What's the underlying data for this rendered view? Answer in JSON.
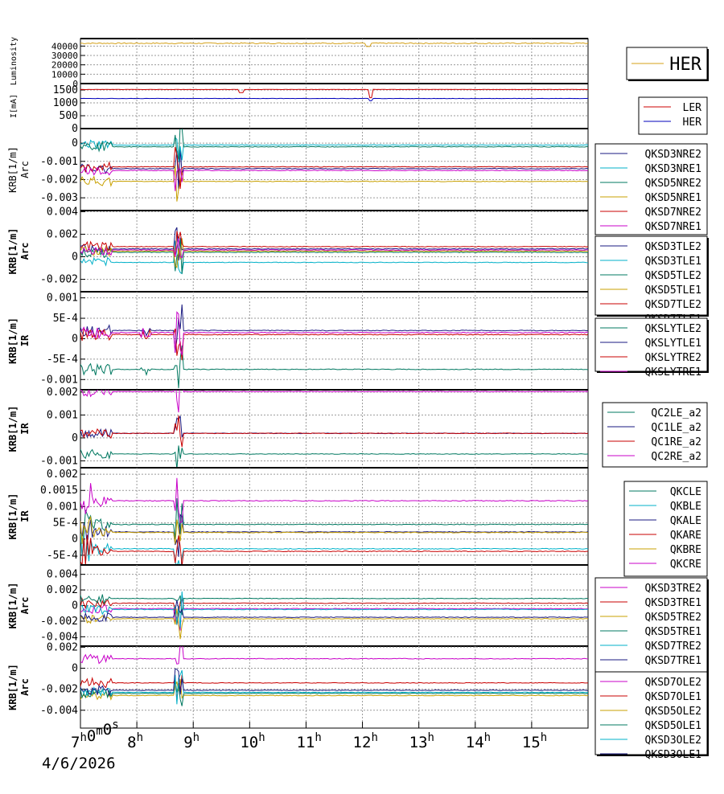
{
  "chart_data": {
    "type": "line",
    "x_axis": {
      "start": "2026-04-06 07:00:00",
      "end": "2026-04-06 16:00:00",
      "tick_labels": [
        "7h0m0s",
        "8h",
        "9h",
        "10h",
        "11h",
        "12h",
        "13h",
        "14h",
        "15h"
      ],
      "date_label": "4/6/2026"
    },
    "panels": [
      {
        "id": "luminosity",
        "ylabel": [
          "Luminosity"
        ],
        "yticks": [
          "40000",
          "30000",
          "20000",
          "10000",
          "0"
        ],
        "ylim": [
          0,
          48000
        ],
        "legend": [
          {
            "name": "HER",
            "color": "#d4a017"
          }
        ],
        "series": [
          {
            "name": "HER",
            "color": "#d4a017",
            "level": 43000,
            "noise": 600,
            "dips": [
              {
                "t": 12.1,
                "v": 39500
              }
            ]
          }
        ]
      },
      {
        "id": "current",
        "ylabel": [
          "I[mA]"
        ],
        "yticks": [
          "1500",
          "1000",
          "500",
          "0"
        ],
        "ylim": [
          0,
          1750
        ],
        "legend": [
          {
            "name": "LER",
            "color": "#cc0000"
          },
          {
            "name": "HER",
            "color": "#0000bb"
          }
        ],
        "series": [
          {
            "name": "LER",
            "color": "#cc0000",
            "level": 1520,
            "noise": 5,
            "dips": [
              {
                "t": 9.85,
                "v": 1400
              },
              {
                "t": 12.15,
                "v": 1200
              }
            ]
          },
          {
            "name": "HER",
            "color": "#0000bb",
            "level": 1170,
            "noise": 5,
            "dips": [
              {
                "t": 12.15,
                "v": 1080
              }
            ]
          }
        ]
      },
      {
        "id": "arc-nre",
        "ylabel": [
          "KRB[1/m]",
          "Arc"
        ],
        "yticks": [
          "0",
          "-0.001",
          "-0.002",
          "-0.003"
        ],
        "ylim": [
          -0.0037,
          0.0008
        ],
        "legend": [
          {
            "name": "QKSD3NRE2",
            "color": "#1a1a80"
          },
          {
            "name": "QKSD3NRE1",
            "color": "#00b0c8"
          },
          {
            "name": "QKSD5NRE2",
            "color": "#007860"
          },
          {
            "name": "QKSD5NRE1",
            "color": "#c8a000"
          },
          {
            "name": "QKSD7NRE2",
            "color": "#c80000"
          },
          {
            "name": "QKSD7NRE1",
            "color": "#c800c8"
          }
        ],
        "series": [
          {
            "name": "QKSD3NRE2",
            "color": "#1a1a80",
            "level": -0.0014
          },
          {
            "name": "QKSD3NRE1",
            "color": "#00b0c8",
            "level": -0.0001
          },
          {
            "name": "QKSD5NRE2",
            "color": "#007860",
            "level": -0.0002
          },
          {
            "name": "QKSD5NRE1",
            "color": "#c8a000",
            "level": -0.0021
          },
          {
            "name": "QKSD7NRE2",
            "color": "#c80000",
            "level": -0.0013
          },
          {
            "name": "QKSD7NRE1",
            "color": "#c800c8",
            "level": -0.0015
          }
        ]
      },
      {
        "id": "arc-tle",
        "ylabel": [
          "KRB[1/m]",
          "Arc"
        ],
        "yticks": [
          "0.004",
          "0.002",
          "0",
          "-0.002"
        ],
        "ylim": [
          -0.0031,
          0.0041
        ],
        "legend": [
          {
            "name": "QKSD3TLE2",
            "color": "#1a1a80"
          },
          {
            "name": "QKSD3TLE1",
            "color": "#00b0c8"
          },
          {
            "name": "QKSD5TLE2",
            "color": "#007860"
          },
          {
            "name": "QKSD5TLE1",
            "color": "#c8a000"
          },
          {
            "name": "QKSD7TLE2",
            "color": "#c80000"
          },
          {
            "name": "QKSD7TLE1",
            "color": "#c800c8"
          }
        ],
        "series": [
          {
            "name": "QKSD3TLE2",
            "color": "#1a1a80",
            "level": 0.0007
          },
          {
            "name": "QKSD3TLE1",
            "color": "#00b0c8",
            "level": -0.0005
          },
          {
            "name": "QKSD5TLE2",
            "color": "#007860",
            "level": 0.0004
          },
          {
            "name": "QKSD5TLE1",
            "color": "#c8a000",
            "level": 0.0005
          },
          {
            "name": "QKSD7TLE2",
            "color": "#c80000",
            "level": 0.0009
          },
          {
            "name": "QKSD7TLE1",
            "color": "#c800c8",
            "level": 0.0006
          }
        ]
      },
      {
        "id": "ir-slyt",
        "ylabel": [
          "KRB[1/m]",
          "IR"
        ],
        "yticks": [
          "0.001",
          "5E-4",
          "0",
          "-5E-4",
          "-0.001"
        ],
        "ylim": [
          -0.00125,
          0.00115
        ],
        "legend": [
          {
            "name": "QKSLYTLE2",
            "color": "#007860"
          },
          {
            "name": "QKSLYTLE1",
            "color": "#1a1a80"
          },
          {
            "name": "QKSLYTRE2",
            "color": "#c80000"
          },
          {
            "name": "QKSLYTRE1",
            "color": "#c800c8"
          }
        ],
        "series": [
          {
            "name": "QKSLYTLE2",
            "color": "#007860",
            "level": -0.00075
          },
          {
            "name": "QKSLYTLE1",
            "color": "#1a1a80",
            "level": 0.0002
          },
          {
            "name": "QKSLYTRE2",
            "color": "#c80000",
            "level": 0.0001
          },
          {
            "name": "QKSLYTRE1",
            "color": "#c800c8",
            "level": 0.00015
          }
        ]
      },
      {
        "id": "ir-qc",
        "ylabel": [
          "KRB[1/m]",
          "IR"
        ],
        "yticks": [
          "0.002",
          "0.001",
          "0",
          "-0.001"
        ],
        "ylim": [
          -0.0013,
          0.0021
        ],
        "legend": [
          {
            "name": "QC2LE_a2",
            "color": "#007860"
          },
          {
            "name": "QC1LE_a2",
            "color": "#1a1a80"
          },
          {
            "name": "QC1RE_a2",
            "color": "#c80000"
          },
          {
            "name": "QC2RE_a2",
            "color": "#c800c8"
          }
        ],
        "series": [
          {
            "name": "QC2LE_a2",
            "color": "#007860",
            "level": -0.0007
          },
          {
            "name": "QC1LE_a2",
            "color": "#1a1a80",
            "level": 0.0002
          },
          {
            "name": "QC1RE_a2",
            "color": "#c80000",
            "level": 0.0002
          },
          {
            "name": "QC2RE_a2",
            "color": "#c800c8",
            "level": 0.00202
          }
        ]
      },
      {
        "id": "ir-qk",
        "ylabel": [
          "KRB[1/m]",
          "IR"
        ],
        "yticks": [
          "0.002",
          "0.0015",
          "0.001",
          "5E-4",
          "0",
          "-5E-4"
        ],
        "ylim": [
          -0.0008,
          0.0022
        ],
        "legend": [
          {
            "name": "QKCLE",
            "color": "#007860"
          },
          {
            "name": "QKBLE",
            "color": "#00b0c8"
          },
          {
            "name": "QKALE",
            "color": "#1a1a80"
          },
          {
            "name": "QKARE",
            "color": "#c80000"
          },
          {
            "name": "QKBRE",
            "color": "#c8a000"
          },
          {
            "name": "QKCRE",
            "color": "#c800c8"
          }
        ],
        "series": [
          {
            "name": "QKCLE",
            "color": "#007860",
            "level": 0.00045
          },
          {
            "name": "QKBLE",
            "color": "#00b0c8",
            "level": -0.0003
          },
          {
            "name": "QKALE",
            "color": "#1a1a80",
            "level": 0.00022
          },
          {
            "name": "QKARE",
            "color": "#c80000",
            "level": -0.00038
          },
          {
            "name": "QKBRE",
            "color": "#c8a000",
            "level": 0.0002
          },
          {
            "name": "QKCRE",
            "color": "#c800c8",
            "level": 0.00118
          }
        ]
      },
      {
        "id": "arc-tre",
        "ylabel": [
          "KRB[1/m]",
          "Arc"
        ],
        "yticks": [
          "0.004",
          "0.002",
          "0",
          "-0.002",
          "-0.004"
        ],
        "ylim": [
          -0.0052,
          0.0052
        ],
        "legend": [
          {
            "name": "QKSD3TRE2",
            "color": "#c800c8"
          },
          {
            "name": "QKSD3TRE1",
            "color": "#c80000"
          },
          {
            "name": "QKSD5TRE2",
            "color": "#c8a000"
          },
          {
            "name": "QKSD5TRE1",
            "color": "#007860"
          },
          {
            "name": "QKSD7TRE2",
            "color": "#00b0c8"
          },
          {
            "name": "QKSD7TRE1",
            "color": "#1a1a80"
          }
        ],
        "series": [
          {
            "name": "QKSD3TRE2",
            "color": "#c800c8",
            "level": -0.0004
          },
          {
            "name": "QKSD3TRE1",
            "color": "#c80000",
            "level": 0.0003
          },
          {
            "name": "QKSD5TRE2",
            "color": "#c8a000",
            "level": -0.0017
          },
          {
            "name": "QKSD5TRE1",
            "color": "#007860",
            "level": 0.0009
          },
          {
            "name": "QKSD7TRE2",
            "color": "#00b0c8",
            "level": -0.0005
          },
          {
            "name": "QKSD7TRE1",
            "color": "#1a1a80",
            "level": -0.0015
          }
        ]
      },
      {
        "id": "arc-ole",
        "ylabel": [
          "KRB[1/m]",
          "Arc"
        ],
        "yticks": [
          "0.002",
          "0",
          "-0.002",
          "-0.004"
        ],
        "ylim": [
          -0.0057,
          0.0021
        ],
        "legend": [
          {
            "name": "QKSD7OLE2",
            "color": "#c800c8"
          },
          {
            "name": "QKSD7OLE1",
            "color": "#c80000"
          },
          {
            "name": "QKSD5OLE2",
            "color": "#c8a000"
          },
          {
            "name": "QKSD5OLE1",
            "color": "#007860"
          },
          {
            "name": "QKSD3OLE2",
            "color": "#00b0c8"
          },
          {
            "name": "QKSD3OLE1",
            "color": "#1a1a80"
          }
        ],
        "series": [
          {
            "name": "QKSD7OLE2",
            "color": "#c800c8",
            "level": 0.0009
          },
          {
            "name": "QKSD7OLE1",
            "color": "#c80000",
            "level": -0.0014
          },
          {
            "name": "QKSD5OLE2",
            "color": "#c8a000",
            "level": -0.0026
          },
          {
            "name": "QKSD5OLE1",
            "color": "#007860",
            "level": -0.0024
          },
          {
            "name": "QKSD3OLE2",
            "color": "#00b0c8",
            "level": -0.0023
          },
          {
            "name": "QKSD3OLE1",
            "color": "#1a1a80",
            "level": -0.0021
          }
        ]
      }
    ]
  }
}
